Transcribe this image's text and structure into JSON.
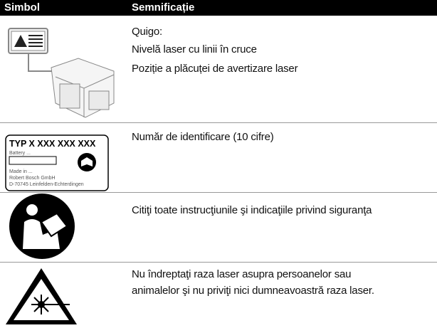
{
  "header": {
    "columns": [
      "Simbol",
      "Semnificație"
    ]
  },
  "rows": [
    {
      "meaning": [
        "Quigo:",
        "Nivelă laser cu linii în cruce",
        "Poziție a plăcuței de avertizare laser"
      ]
    },
    {
      "label": [
        "TYP X XXX XXX XXX",
        "Battery ...",
        "Made in ...",
        "Robert Bosch GmbH",
        "D-70745 Leinfelden-Echterdingen"
      ],
      "meaning": [
        "Număr de identificare (10 cifre)"
      ]
    },
    {
      "meaning": [
        "Citiţi toate instrucţiunile şi indicaţiile privind siguranţa"
      ]
    },
    {
      "meaning": [
        "Nu îndreptaţi raza laser asupra persoanelor sau",
        "animalelor şi nu priviţi nici dumneavoastră raza laser."
      ]
    }
  ]
}
